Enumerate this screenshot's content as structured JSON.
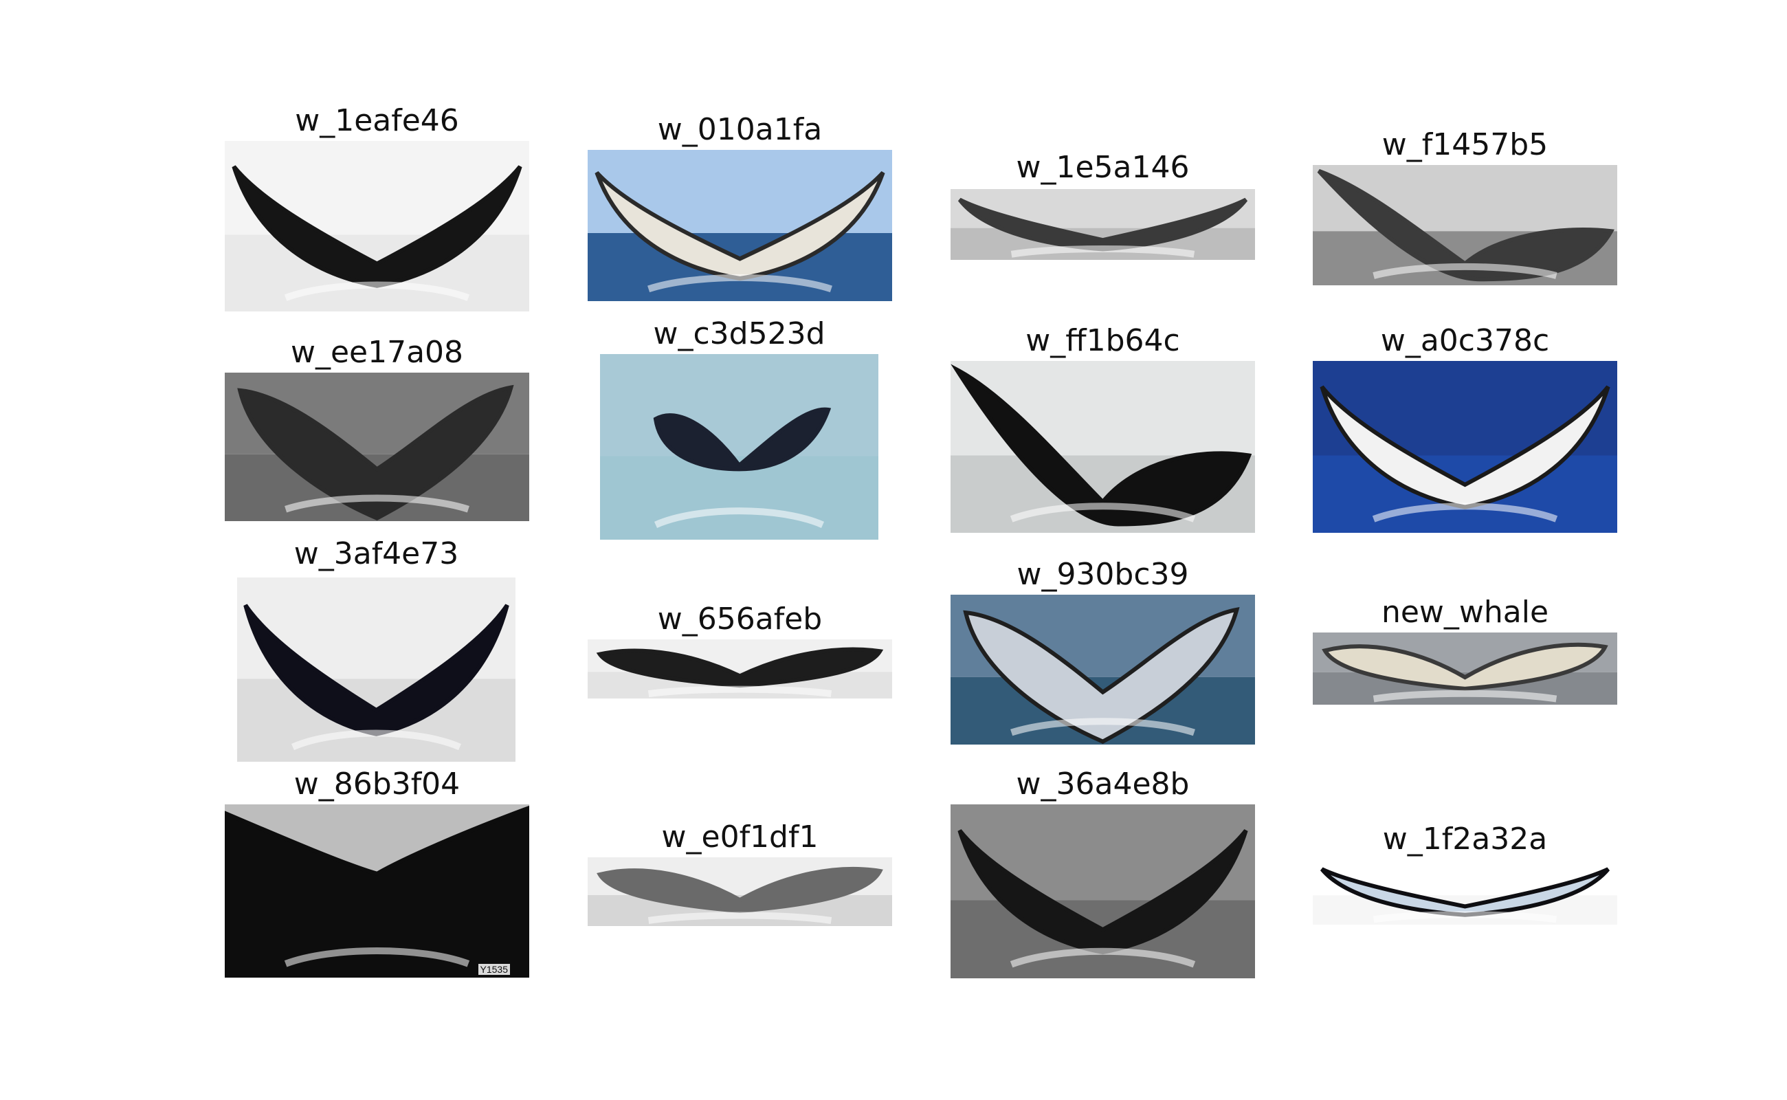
{
  "images": [
    {
      "label": "w_1eafe46",
      "sky": "#f4f4f4",
      "water": "#e9e9e9",
      "tail": "#151515",
      "under": "#ffffff",
      "style": "dark"
    },
    {
      "label": "w_010a1fa",
      "sky": "#a9c8ea",
      "water": "#2f5e96",
      "tail": "#2a2a2a",
      "under": "#e8e4da",
      "style": "light"
    },
    {
      "label": "w_1e5a146",
      "sky": "#d9d9d9",
      "water": "#bdbdbd",
      "tail": "#3a3a3a",
      "under": "#e6e6e6",
      "style": "mixed"
    },
    {
      "label": "w_f1457b5",
      "sky": "#cfcfcf",
      "water": "#8d8d8d",
      "tail": "#3b3b3b",
      "under": "#d8d8d8",
      "style": "side"
    },
    {
      "label": "w_ee17a08",
      "sky": "#7b7b7b",
      "water": "#6a6a6a",
      "tail": "#2b2b2b",
      "under": "#9a9a9a",
      "style": "raised"
    },
    {
      "label": "w_c3d523d",
      "sky": "#a8c9d6",
      "water": "#9fc6d2",
      "tail": "#1b2130",
      "under": "#23293a",
      "style": "small"
    },
    {
      "label": "w_ff1b64c",
      "sky": "#e4e6e6",
      "water": "#c9cccc",
      "tail": "#111111",
      "under": "#d9c7a8",
      "style": "tilted"
    },
    {
      "label": "w_a0c378c",
      "sky": "#1d3f92",
      "water": "#1e4aa8",
      "tail": "#1a1a1a",
      "under": "#f2f2f2",
      "style": "light"
    },
    {
      "label": "w_3af4e73",
      "sky": "#eeeeee",
      "water": "#dcdcdc",
      "tail": "#0f0f1a",
      "under": "#1a1a24",
      "style": "dark"
    },
    {
      "label": "w_656afeb",
      "sky": "#f0f0f0",
      "water": "#e3e3e3",
      "tail": "#1d1d1d",
      "under": "#2a2a2a",
      "style": "flat"
    },
    {
      "label": "w_930bc39",
      "sky": "#607f9b",
      "water": "#335b78",
      "tail": "#1f1f1f",
      "under": "#c8cfd8",
      "style": "raised-light"
    },
    {
      "label": "new_whale",
      "sky": "#9fa3a8",
      "water": "#85898e",
      "tail": "#3a3a3a",
      "under": "#e2dccb",
      "style": "flat-light"
    },
    {
      "label": "w_86b3f04",
      "sky": "#bdbdbd",
      "water": "#5a5a5a",
      "tail": "#0d0d0d",
      "under": "#1a1a1a",
      "style": "closeup",
      "watermark": "Y1535"
    },
    {
      "label": "w_e0f1df1",
      "sky": "#eeeeee",
      "water": "#d6d6d6",
      "tail": "#6a6a6a",
      "under": "#7a7a7a",
      "style": "flat"
    },
    {
      "label": "w_36a4e8b",
      "sky": "#8c8c8c",
      "water": "#6e6e6e",
      "tail": "#161616",
      "under": "#cfcfcf",
      "style": "mixed"
    },
    {
      "label": "w_1f2a32a",
      "sky": "#ffffff",
      "water": "#f6f6f6",
      "tail": "#0e0e12",
      "under": "#c9d7e6",
      "style": "light"
    }
  ]
}
